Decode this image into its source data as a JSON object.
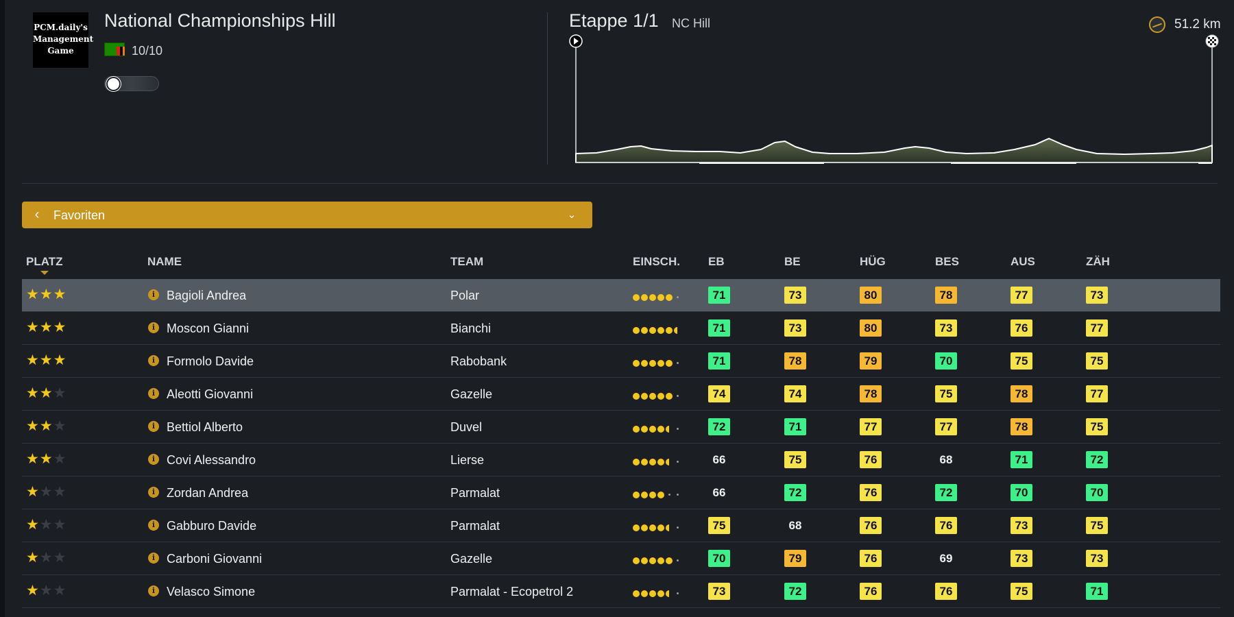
{
  "header": {
    "logo_lines": [
      "PCM.daily's",
      "Management",
      "Game"
    ],
    "event_title": "National Championships Hill",
    "rating": "10/10",
    "stage_title": "Etappe 1/1",
    "stage_subtitle": "NC Hill",
    "distance": "51.2 km"
  },
  "selector": {
    "label": "Favoriten"
  },
  "columns": [
    "PLATZ",
    "NAME",
    "TEAM",
    "EINSCH.",
    "EB",
    "BE",
    "HÜG",
    "BES",
    "AUS",
    "ZÄH"
  ],
  "colors": {
    "green": "#3ef08a",
    "yellow": "#f5e34a",
    "orange": "#f6b733",
    "accent": "#c8951f"
  },
  "riders": [
    {
      "stars": 3,
      "name": "Bagioli Andrea",
      "team": "Polar",
      "form": [
        1,
        1,
        1,
        1,
        1,
        0
      ],
      "stats": [
        71,
        73,
        80,
        78,
        77,
        73
      ],
      "selected": true
    },
    {
      "stars": 3,
      "name": "Moscon Gianni",
      "team": "Bianchi",
      "form": [
        1,
        1,
        1,
        1,
        1,
        0.5
      ],
      "stats": [
        71,
        73,
        80,
        73,
        76,
        77
      ]
    },
    {
      "stars": 3,
      "name": "Formolo Davide",
      "team": "Rabobank",
      "form": [
        1,
        1,
        1,
        1,
        1,
        0
      ],
      "stats": [
        71,
        78,
        79,
        70,
        75,
        75
      ]
    },
    {
      "stars": 2,
      "name": "Aleotti Giovanni",
      "team": "Gazelle",
      "form": [
        1,
        1,
        1,
        1,
        1,
        0
      ],
      "stats": [
        74,
        74,
        78,
        75,
        78,
        77
      ]
    },
    {
      "stars": 2,
      "name": "Bettiol Alberto",
      "team": "Duvel",
      "form": [
        1,
        1,
        1,
        1,
        0.5,
        0
      ],
      "stats": [
        72,
        71,
        77,
        77,
        78,
        75
      ]
    },
    {
      "stars": 2,
      "name": "Covi Alessandro",
      "team": "Lierse",
      "form": [
        1,
        1,
        1,
        1,
        0.5,
        0
      ],
      "stats": [
        66,
        75,
        76,
        68,
        71,
        72
      ]
    },
    {
      "stars": 1,
      "name": "Zordan Andrea",
      "team": "Parmalat",
      "form": [
        1,
        1,
        1,
        1,
        0,
        0
      ],
      "stats": [
        66,
        72,
        76,
        72,
        70,
        70
      ]
    },
    {
      "stars": 1,
      "name": "Gabburo Davide",
      "team": "Parmalat",
      "form": [
        1,
        1,
        1,
        1,
        0.5,
        0
      ],
      "stats": [
        75,
        68,
        76,
        76,
        73,
        75
      ]
    },
    {
      "stars": 1,
      "name": "Carboni Giovanni",
      "team": "Gazelle",
      "form": [
        1,
        1,
        1,
        1,
        1,
        0
      ],
      "stats": [
        70,
        79,
        76,
        69,
        73,
        73
      ]
    },
    {
      "stars": 1,
      "name": "Velasco Simone",
      "team": "Parmalat - Ecopetrol 2",
      "form": [
        1,
        1,
        1,
        1,
        0.5,
        0
      ],
      "stats": [
        73,
        72,
        76,
        76,
        75,
        71
      ]
    }
  ]
}
